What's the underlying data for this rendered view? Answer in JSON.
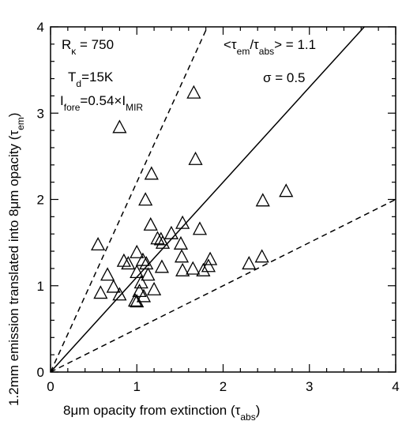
{
  "chart_data": {
    "type": "scatter",
    "xlabel": "8μm opacity from extinction (τabs)",
    "ylabel": "1.2mm emission translated into 8μm opacity (τem)",
    "xlim": [
      0,
      4
    ],
    "ylim": [
      0,
      4
    ],
    "xticks": [
      "0",
      "1",
      "2",
      "3",
      "4"
    ],
    "yticks": [
      "0",
      "1",
      "2",
      "3",
      "4"
    ],
    "grid": false,
    "annotations": {
      "r_kappa": "Rκ = 750",
      "t_d": "Td=15K",
      "i_fore": "Ifore=0.54×IMIR",
      "ratio": "<τem/τabs> = 1.1",
      "sigma": "σ = 0.5"
    },
    "lines": [
      {
        "style": "solid",
        "slope": 1.1
      },
      {
        "style": "dashed",
        "slope": 2.2
      },
      {
        "style": "dashed",
        "slope": 0.5
      }
    ],
    "marker": "open-triangle",
    "points": [
      [
        0.8,
        2.83
      ],
      [
        1.66,
        3.23
      ],
      [
        1.68,
        2.46
      ],
      [
        1.17,
        2.29
      ],
      [
        1.1,
        1.99
      ],
      [
        2.73,
        2.09
      ],
      [
        2.46,
        1.98
      ],
      [
        0.55,
        1.47
      ],
      [
        1.16,
        1.7
      ],
      [
        1.73,
        1.65
      ],
      [
        1.53,
        1.72
      ],
      [
        1.24,
        1.54
      ],
      [
        1.3,
        1.49
      ],
      [
        1.28,
        1.53
      ],
      [
        1.4,
        1.6
      ],
      [
        1.51,
        1.48
      ],
      [
        0.85,
        1.28
      ],
      [
        0.9,
        1.25
      ],
      [
        1.0,
        1.38
      ],
      [
        1.07,
        1.29
      ],
      [
        1.52,
        1.33
      ],
      [
        1.85,
        1.3
      ],
      [
        0.66,
        1.12
      ],
      [
        0.73,
        0.98
      ],
      [
        0.58,
        0.91
      ],
      [
        0.8,
        0.89
      ],
      [
        1.0,
        1.15
      ],
      [
        1.05,
        1.03
      ],
      [
        1.13,
        1.12
      ],
      [
        1.11,
        1.25
      ],
      [
        1.29,
        1.21
      ],
      [
        1.53,
        1.17
      ],
      [
        1.65,
        1.19
      ],
      [
        1.77,
        1.17
      ],
      [
        1.83,
        1.22
      ],
      [
        2.3,
        1.25
      ],
      [
        2.45,
        1.33
      ],
      [
        1.0,
        0.81
      ],
      [
        0.98,
        0.82
      ],
      [
        1.03,
        0.93
      ],
      [
        1.08,
        0.87
      ],
      [
        1.2,
        0.95
      ]
    ]
  }
}
